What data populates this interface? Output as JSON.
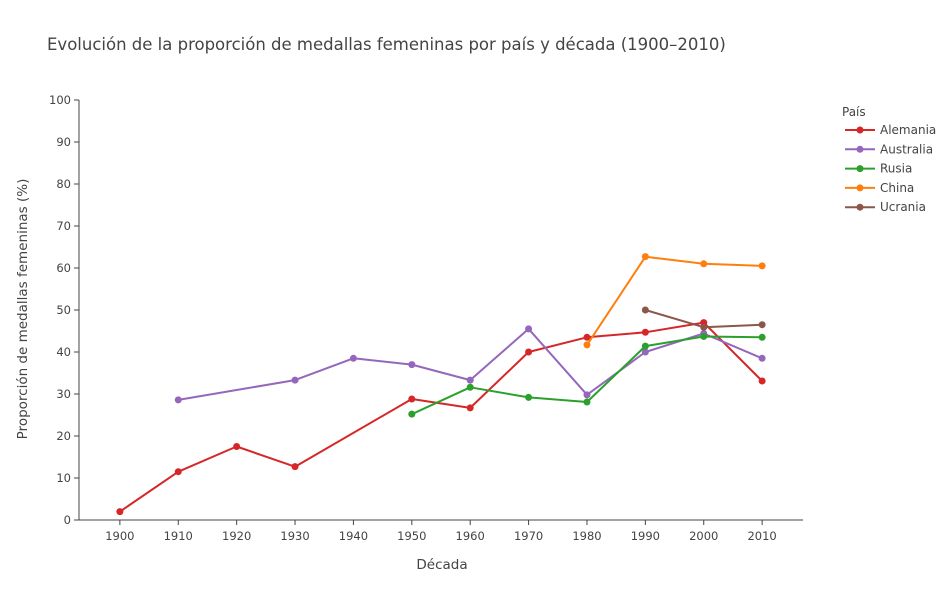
{
  "chart_data": {
    "type": "line",
    "title": "Evolución de la proporción de medallas femeninas por país y década (1900–2010)",
    "xlabel": "Década",
    "ylabel": "Proporción de medallas femeninas (%)",
    "legend_title": "País",
    "legend_position": "right",
    "grid": false,
    "xlim": [
      1893,
      2017
    ],
    "ylim": [
      0,
      100
    ],
    "x_ticks": [
      1900,
      1910,
      1920,
      1930,
      1940,
      1950,
      1960,
      1970,
      1980,
      1990,
      2000,
      2010
    ],
    "y_ticks": [
      0,
      10,
      20,
      30,
      40,
      50,
      60,
      70,
      80,
      90,
      100
    ],
    "series": [
      {
        "name": "Alemania",
        "color": "#d62728",
        "points": [
          {
            "x": 1900,
            "y": 2.0
          },
          {
            "x": 1910,
            "y": 11.5
          },
          {
            "x": 1920,
            "y": 17.5
          },
          {
            "x": 1930,
            "y": 12.7
          },
          {
            "x": 1950,
            "y": 28.8
          },
          {
            "x": 1960,
            "y": 26.7
          },
          {
            "x": 1970,
            "y": 40.0
          },
          {
            "x": 1980,
            "y": 43.5
          },
          {
            "x": 1990,
            "y": 44.7
          },
          {
            "x": 2000,
            "y": 47.0
          },
          {
            "x": 2010,
            "y": 33.1
          }
        ]
      },
      {
        "name": "Australia",
        "color": "#9467bd",
        "points": [
          {
            "x": 1910,
            "y": 28.6
          },
          {
            "x": 1930,
            "y": 33.3
          },
          {
            "x": 1940,
            "y": 38.5
          },
          {
            "x": 1950,
            "y": 37.0
          },
          {
            "x": 1960,
            "y": 33.3
          },
          {
            "x": 1970,
            "y": 45.5
          },
          {
            "x": 1980,
            "y": 29.8
          },
          {
            "x": 1990,
            "y": 40.0
          },
          {
            "x": 2000,
            "y": 44.4
          },
          {
            "x": 2010,
            "y": 38.5
          }
        ]
      },
      {
        "name": "Rusia",
        "color": "#2ca02c",
        "points": [
          {
            "x": 1950,
            "y": 25.2
          },
          {
            "x": 1960,
            "y": 31.6
          },
          {
            "x": 1970,
            "y": 29.2
          },
          {
            "x": 1980,
            "y": 28.1
          },
          {
            "x": 1990,
            "y": 41.4
          },
          {
            "x": 2000,
            "y": 43.7
          },
          {
            "x": 2010,
            "y": 43.5
          }
        ]
      },
      {
        "name": "China",
        "color": "#ff7f0e",
        "points": [
          {
            "x": 1980,
            "y": 41.7
          },
          {
            "x": 1990,
            "y": 62.7
          },
          {
            "x": 2000,
            "y": 61.0
          },
          {
            "x": 2010,
            "y": 60.5
          }
        ]
      },
      {
        "name": "Ucrania",
        "color": "#8c564b",
        "points": [
          {
            "x": 1990,
            "y": 50.0
          },
          {
            "x": 2000,
            "y": 45.9
          },
          {
            "x": 2010,
            "y": 46.5
          }
        ]
      }
    ]
  }
}
